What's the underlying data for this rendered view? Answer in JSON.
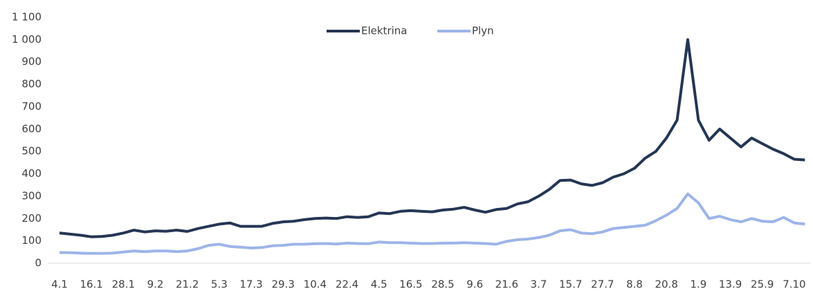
{
  "chart_data": {
    "type": "line",
    "categories": [
      "4.1",
      null,
      null,
      "16.1",
      null,
      null,
      "28.1",
      null,
      null,
      "9.2",
      null,
      null,
      "21.2",
      null,
      null,
      "5.3",
      null,
      null,
      "17.3",
      null,
      null,
      "29.3",
      null,
      null,
      "10.4",
      null,
      null,
      "22.4",
      null,
      null,
      "4.5",
      null,
      null,
      "16.5",
      null,
      null,
      "28.5",
      null,
      null,
      "9.6",
      null,
      null,
      "21.6",
      null,
      null,
      "3.7",
      null,
      null,
      "15.7",
      null,
      null,
      "27.7",
      null,
      null,
      "8.8",
      null,
      null,
      "20.8",
      null,
      null,
      "1.9",
      null,
      null,
      "13.9",
      null,
      null,
      "25.9",
      null,
      null,
      "7.10",
      null
    ],
    "series": [
      {
        "name": "Elektrina",
        "color": "#243654",
        "values": [
          135,
          130,
          125,
          118,
          120,
          125,
          135,
          148,
          140,
          145,
          143,
          148,
          142,
          155,
          165,
          175,
          180,
          165,
          165,
          165,
          178,
          185,
          188,
          195,
          200,
          202,
          200,
          208,
          205,
          208,
          225,
          222,
          232,
          235,
          232,
          230,
          238,
          242,
          250,
          238,
          228,
          240,
          245,
          265,
          275,
          300,
          330,
          370,
          372,
          355,
          348,
          360,
          385,
          400,
          425,
          470,
          500,
          560,
          640,
          1000,
          640,
          550,
          600,
          560,
          520,
          560,
          535,
          510,
          490,
          465,
          462
        ]
      },
      {
        "name": "Plyn",
        "color": "#9db4e8",
        "values": [
          48,
          47,
          45,
          44,
          44,
          45,
          50,
          55,
          52,
          55,
          55,
          52,
          55,
          65,
          80,
          85,
          75,
          72,
          68,
          70,
          78,
          80,
          85,
          85,
          87,
          88,
          86,
          90,
          88,
          87,
          95,
          92,
          92,
          90,
          88,
          88,
          90,
          90,
          92,
          90,
          88,
          85,
          98,
          105,
          108,
          115,
          125,
          145,
          150,
          135,
          132,
          140,
          155,
          160,
          165,
          170,
          190,
          215,
          245,
          310,
          270,
          200,
          210,
          195,
          185,
          200,
          188,
          185,
          205,
          180,
          175
        ]
      }
    ],
    "ylim": [
      0,
      1100
    ],
    "yticks": [
      0,
      100,
      200,
      300,
      400,
      500,
      600,
      700,
      800,
      900,
      {
        "value": 1000,
        "label": "1 000"
      },
      {
        "value": 1100,
        "label": "1 100"
      }
    ],
    "grid": false,
    "legend": "top"
  }
}
